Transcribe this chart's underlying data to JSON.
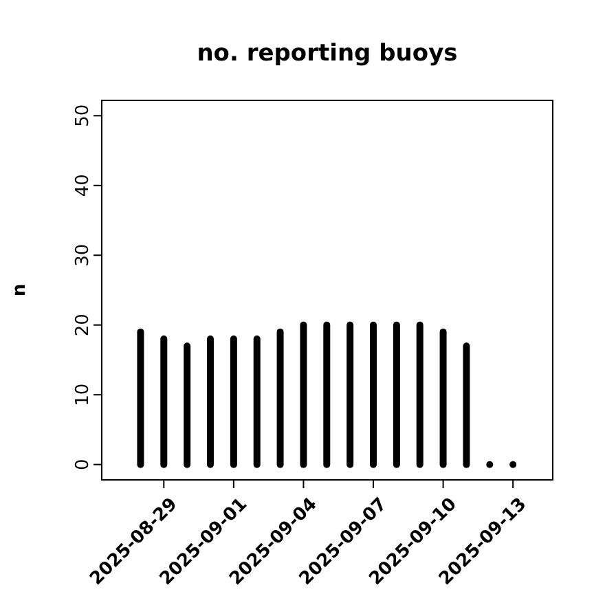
{
  "chart_data": {
    "type": "bar",
    "title": "no. reporting buoys",
    "ylabel": "n",
    "color": "#000000",
    "x": [
      "2025-08-28",
      "2025-08-29",
      "2025-08-30",
      "2025-08-31",
      "2025-09-01",
      "2025-09-02",
      "2025-09-03",
      "2025-09-04",
      "2025-09-05",
      "2025-09-06",
      "2025-09-07",
      "2025-09-08",
      "2025-09-09",
      "2025-09-10",
      "2025-09-11",
      "2025-09-12",
      "2025-09-13"
    ],
    "values": [
      19,
      18,
      17,
      18,
      18,
      18,
      19,
      20,
      20,
      20,
      20,
      20,
      20,
      19,
      17,
      0,
      0
    ],
    "xlim": [
      "2025-08-26T08:00",
      "2025-09-14T17:00"
    ],
    "xticks": [
      {
        "value": "2025-08-29",
        "label": "2025-08-29"
      },
      {
        "value": "2025-09-01",
        "label": "2025-09-01"
      },
      {
        "value": "2025-09-04",
        "label": "2025-09-04"
      },
      {
        "value": "2025-09-07",
        "label": "2025-09-07"
      },
      {
        "value": "2025-09-10",
        "label": "2025-09-10"
      },
      {
        "value": "2025-09-13",
        "label": "2025-09-13"
      }
    ],
    "ylim": [
      -2.2,
      52.2
    ],
    "yticks": [
      0,
      10,
      20,
      30,
      40,
      50
    ],
    "grid": false
  }
}
